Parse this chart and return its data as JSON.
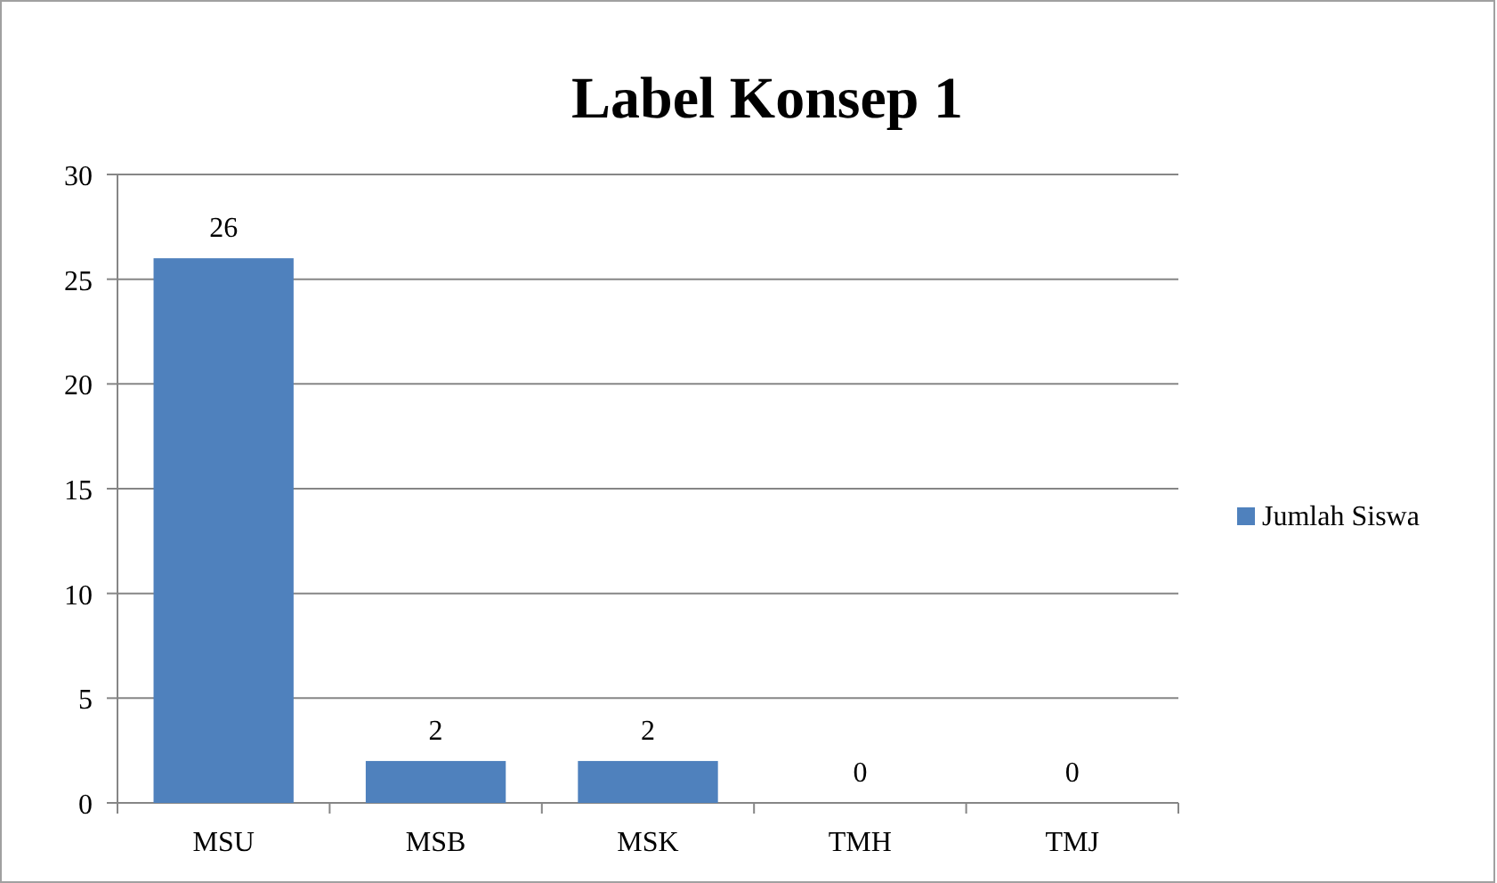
{
  "chart_data": {
    "type": "bar",
    "title": "Label Konsep 1",
    "categories": [
      "MSU",
      "MSB",
      "MSK",
      "TMH",
      "TMJ"
    ],
    "series": [
      {
        "name": "Jumlah Siswa",
        "color": "#4f81bd",
        "values": [
          26,
          2,
          2,
          0,
          0
        ]
      }
    ],
    "ylim": [
      0,
      30
    ],
    "yticks": [
      0,
      5,
      10,
      15,
      20,
      25,
      30
    ],
    "grid": "y",
    "legend": "right",
    "data_labels": true
  }
}
